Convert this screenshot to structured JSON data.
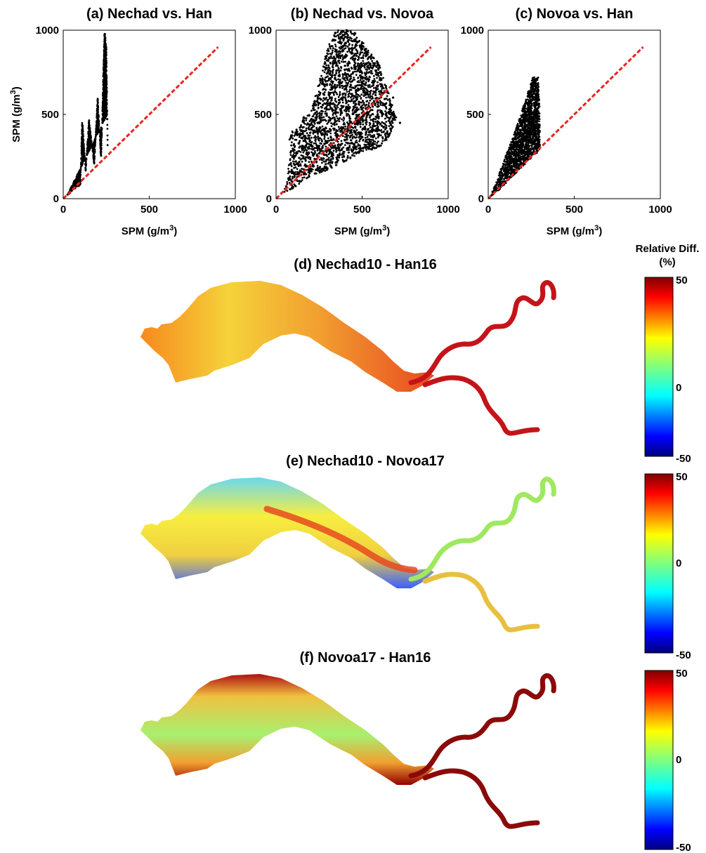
{
  "colors": {
    "points": "#000000",
    "reference_line": "#e8241f",
    "colormap": [
      "#00007f",
      "#0000ff",
      "#007fff",
      "#00ffff",
      "#7fff7f",
      "#ffff00",
      "#ff7f00",
      "#ff0000",
      "#7f0000"
    ]
  },
  "colorbar_title": [
    "Relative Diff.",
    "(%)"
  ],
  "chart_data": [
    {
      "type": "scatter",
      "title": "(a) Nechad vs. Han",
      "xlabel": "SPM (g/m",
      "xlabel_sup": "3",
      "xlabel_end": ")",
      "ylabel": "SPM (g/m",
      "ylabel_sup": "3",
      "ylabel_end": ")",
      "xlim": [
        0,
        1000
      ],
      "ylim": [
        0,
        1000
      ],
      "xticks": [
        0,
        500,
        1000
      ],
      "yticks": [
        0,
        500,
        1000
      ],
      "reference_line": {
        "from": [
          0,
          0
        ],
        "to": [
          900,
          900
        ],
        "style": "dashed"
      },
      "cloud": [
        [
          20,
          15
        ],
        [
          60,
          55
        ],
        [
          100,
          80
        ],
        [
          110,
          480
        ],
        [
          130,
          160
        ],
        [
          150,
          470
        ],
        [
          180,
          200
        ],
        [
          200,
          600
        ],
        [
          220,
          230
        ],
        [
          240,
          1000
        ],
        [
          250,
          900
        ],
        [
          260,
          200
        ],
        [
          255,
          500
        ]
      ],
      "note_points": "dense cloud of several thousand points"
    },
    {
      "type": "scatter",
      "title": "(b) Nechad vs. Novoa",
      "xlabel": "SPM (g/m",
      "xlabel_sup": "3",
      "xlabel_end": ")",
      "xlim": [
        0,
        1000
      ],
      "ylim": [
        0,
        1000
      ],
      "xticks": [
        0,
        500,
        1000
      ],
      "yticks": [
        0,
        500,
        1000
      ],
      "reference_line": {
        "from": [
          0,
          0
        ],
        "to": [
          900,
          900
        ],
        "style": "dashed"
      },
      "cloud": [
        [
          20,
          20
        ],
        [
          100,
          60
        ],
        [
          150,
          100
        ],
        [
          200,
          130
        ],
        [
          300,
          170
        ],
        [
          400,
          220
        ],
        [
          500,
          280
        ],
        [
          600,
          300
        ],
        [
          650,
          350
        ],
        [
          700,
          480
        ],
        [
          600,
          800
        ],
        [
          450,
          1000
        ],
        [
          350,
          1000
        ],
        [
          300,
          900
        ],
        [
          200,
          500
        ],
        [
          150,
          480
        ],
        [
          60,
          300
        ],
        [
          100,
          420
        ],
        [
          60,
          80
        ]
      ]
    },
    {
      "type": "scatter",
      "title": "(c) Novoa vs. Han",
      "xlabel": "SPM (g/m",
      "xlabel_sup": "3",
      "xlabel_end": ")",
      "xlim": [
        0,
        1000
      ],
      "ylim": [
        0,
        1000
      ],
      "xticks": [
        0,
        500,
        1000
      ],
      "yticks": [
        0,
        500,
        1000
      ],
      "reference_line": {
        "from": [
          0,
          0
        ],
        "to": [
          900,
          900
        ],
        "style": "dashed"
      },
      "cloud": [
        [
          10,
          10
        ],
        [
          60,
          50
        ],
        [
          120,
          110
        ],
        [
          180,
          170
        ],
        [
          250,
          240
        ],
        [
          300,
          290
        ],
        [
          300,
          500
        ],
        [
          290,
          720
        ],
        [
          260,
          720
        ],
        [
          220,
          600
        ],
        [
          150,
          380
        ],
        [
          100,
          250
        ],
        [
          40,
          80
        ]
      ]
    },
    {
      "type": "heatmap",
      "title": "(d) Nechad10 - Han16",
      "colorbar": {
        "min": -50,
        "max": 50,
        "ticks": [
          50,
          0,
          -50
        ]
      },
      "pattern": "mostly positive: yellow-orange estuary, red river channels"
    },
    {
      "type": "heatmap",
      "title": "(e) Nechad10 - Novoa17",
      "colorbar": {
        "min": -50,
        "max": 50,
        "ticks": [
          50,
          0,
          -50
        ]
      },
      "pattern": "mixed: yellow estuary with cyan/blue patches, red mid-channel, mixed upstream rivers"
    },
    {
      "type": "heatmap",
      "title": "(f) Novoa17 - Han16",
      "colorbar": {
        "min": -50,
        "max": 50,
        "ticks": [
          50,
          0,
          -50
        ]
      },
      "pattern": "positive: yellow/green estuary center, dark red edges and river channels"
    }
  ]
}
